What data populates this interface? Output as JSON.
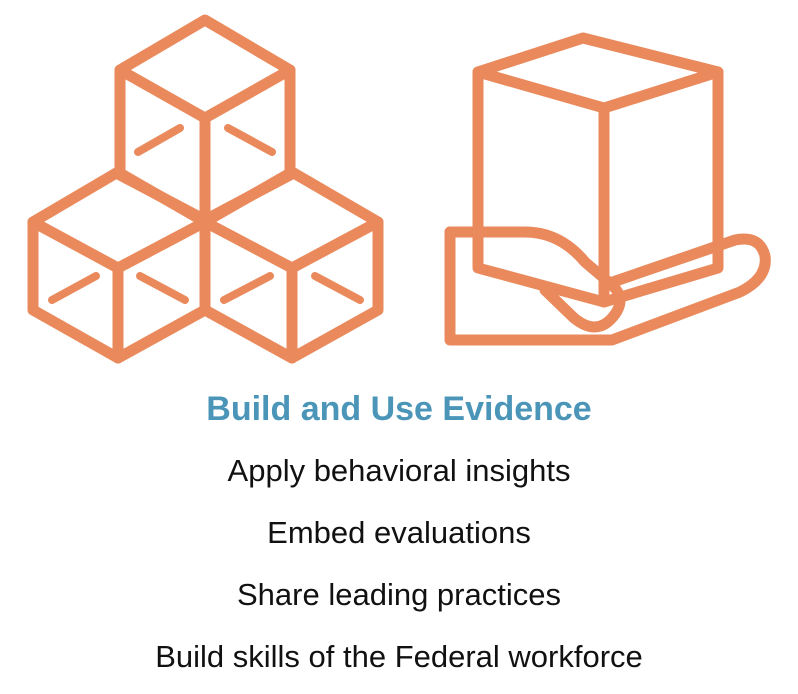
{
  "colors": {
    "icon_stroke": "#EA8A5C",
    "heading": "#4A95B8",
    "body_text": "#111111"
  },
  "icons": [
    "stacked-cubes-icon",
    "hand-holding-box-icon"
  ],
  "heading": "Build and Use Evidence",
  "items": [
    "Apply behavioral insights",
    "Embed evaluations",
    "Share leading practices",
    "Build skills of the Federal workforce"
  ]
}
